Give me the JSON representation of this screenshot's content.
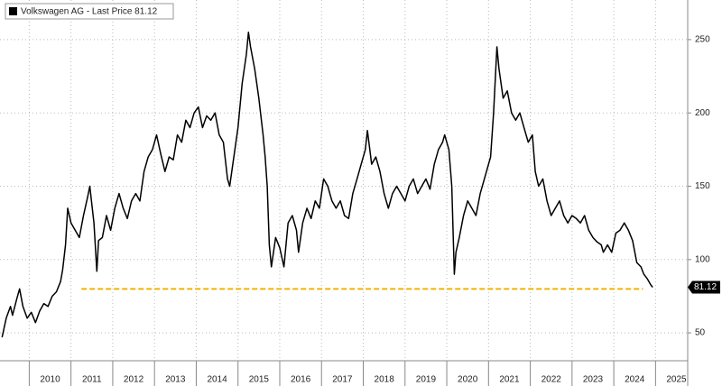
{
  "chart_data": {
    "type": "line",
    "x": [
      2009.35,
      2009.45,
      2009.55,
      2009.6,
      2009.7,
      2009.77,
      2009.85,
      2009.95,
      2010.05,
      2010.15,
      2010.25,
      2010.35,
      2010.45,
      2010.55,
      2010.65,
      2010.75,
      2010.8,
      2010.87,
      2010.92,
      2011.0,
      2011.1,
      2011.2,
      2011.3,
      2011.4,
      2011.45,
      2011.55,
      2011.62,
      2011.66,
      2011.75,
      2011.85,
      2011.95,
      2012.05,
      2012.15,
      2012.25,
      2012.35,
      2012.45,
      2012.55,
      2012.65,
      2012.75,
      2012.85,
      2012.95,
      2013.05,
      2013.15,
      2013.25,
      2013.35,
      2013.45,
      2013.55,
      2013.65,
      2013.75,
      2013.85,
      2013.95,
      2014.05,
      2014.15,
      2014.25,
      2014.35,
      2014.45,
      2014.55,
      2014.65,
      2014.75,
      2014.8,
      2014.9,
      2015.0,
      2015.1,
      2015.2,
      2015.25,
      2015.3,
      2015.4,
      2015.5,
      2015.6,
      2015.65,
      2015.7,
      2015.75,
      2015.8,
      2015.9,
      2016.0,
      2016.1,
      2016.2,
      2016.3,
      2016.4,
      2016.45,
      2016.55,
      2016.65,
      2016.75,
      2016.85,
      2016.95,
      2017.05,
      2017.15,
      2017.25,
      2017.35,
      2017.45,
      2017.55,
      2017.65,
      2017.75,
      2017.85,
      2017.95,
      2018.05,
      2018.1,
      2018.2,
      2018.3,
      2018.4,
      2018.5,
      2018.6,
      2018.7,
      2018.8,
      2018.9,
      2019.0,
      2019.1,
      2019.2,
      2019.3,
      2019.4,
      2019.5,
      2019.6,
      2019.7,
      2019.8,
      2019.9,
      2019.95,
      2020.05,
      2020.12,
      2020.18,
      2020.22,
      2020.3,
      2020.4,
      2020.5,
      2020.6,
      2020.7,
      2020.8,
      2020.9,
      2020.95,
      2021.05,
      2021.12,
      2021.2,
      2021.25,
      2021.35,
      2021.45,
      2021.55,
      2021.65,
      2021.75,
      2021.85,
      2021.95,
      2022.05,
      2022.12,
      2022.2,
      2022.3,
      2022.4,
      2022.5,
      2022.6,
      2022.7,
      2022.8,
      2022.9,
      2023.0,
      2023.1,
      2023.2,
      2023.3,
      2023.4,
      2023.5,
      2023.6,
      2023.7,
      2023.75,
      2023.85,
      2023.95,
      2024.05,
      2024.15,
      2024.25,
      2024.35,
      2024.45,
      2024.55,
      2024.65,
      2024.72,
      2024.8,
      2024.88,
      2024.93
    ],
    "series": [
      {
        "name": "Volkswagen AG - Last Price 81.12",
        "color": "#000000",
        "last_label": "81.12",
        "values": [
          47,
          60,
          68,
          62,
          73,
          80,
          68,
          60,
          64,
          57,
          65,
          70,
          68,
          75,
          78,
          85,
          93,
          110,
          135,
          125,
          120,
          115,
          130,
          143,
          150,
          125,
          92,
          113,
          115,
          130,
          120,
          135,
          145,
          135,
          128,
          140,
          145,
          140,
          160,
          170,
          175,
          185,
          172,
          160,
          170,
          168,
          185,
          180,
          195,
          190,
          200,
          204,
          190,
          198,
          195,
          200,
          185,
          180,
          155,
          150,
          170,
          190,
          220,
          240,
          255,
          245,
          230,
          210,
          185,
          170,
          150,
          110,
          95,
          115,
          108,
          95,
          125,
          130,
          120,
          105,
          125,
          135,
          128,
          140,
          135,
          155,
          150,
          140,
          135,
          140,
          130,
          128,
          145,
          155,
          165,
          175,
          188,
          165,
          170,
          160,
          145,
          135,
          145,
          150,
          145,
          140,
          150,
          155,
          145,
          150,
          155,
          148,
          165,
          175,
          180,
          185,
          175,
          150,
          90,
          105,
          115,
          130,
          140,
          135,
          130,
          145,
          155,
          160,
          170,
          200,
          245,
          230,
          210,
          215,
          200,
          195,
          200,
          190,
          180,
          185,
          160,
          150,
          155,
          140,
          130,
          135,
          140,
          130,
          125,
          130,
          128,
          125,
          130,
          120,
          115,
          112,
          110,
          105,
          110,
          105,
          118,
          120,
          125,
          120,
          113,
          98,
          95,
          90,
          87,
          83,
          81.12
        ]
      }
    ],
    "reference_line": {
      "value": 80,
      "x": [
        2011.25,
        2024.7
      ],
      "color": "#f0b400"
    },
    "xlim": [
      2009.3,
      2025.77
    ],
    "xticks": [
      2010,
      2011,
      2012,
      2013,
      2014,
      2015,
      2016,
      2017,
      2018,
      2019,
      2020,
      2021,
      2022,
      2023,
      2024,
      2025
    ],
    "ylim": [
      31,
      277
    ],
    "yticks": [
      50,
      100,
      150,
      200,
      250
    ],
    "grid": true
  }
}
